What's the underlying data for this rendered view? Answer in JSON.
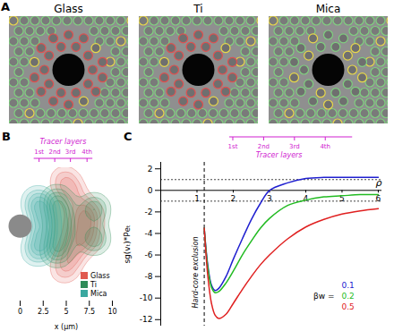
{
  "chart_data": [
    {
      "type": "image",
      "panel": "A",
      "titles": [
        "Glass",
        "Ti",
        "Mica"
      ]
    },
    {
      "type": "density",
      "panel": "B",
      "xlabel": "x (μm)",
      "xlim": [
        0,
        10
      ],
      "xticks": [
        0,
        2.5,
        5,
        7.5,
        10
      ],
      "ylim": [
        -9,
        7
      ],
      "tick_labels": "x",
      "legend": "bottom-right",
      "particle": {
        "x": 0,
        "y": 0
      },
      "layers": {
        "title": "Tracer layers",
        "labels": [
          "1st",
          "2nd",
          "3rd",
          "4th"
        ],
        "x": [
          2.1,
          3.8,
          5.5,
          7.3
        ]
      },
      "series": [
        {
          "name": "Glass",
          "color": "#e05a50",
          "x": [
            6.5,
            6.8,
            6.2,
            5.6,
            5.5,
            7.5,
            7.4,
            4.8,
            4.8
          ],
          "y": [
            0,
            2,
            -2,
            4,
            -3.5,
            1,
            -1.5,
            5.5,
            -5.2
          ]
        },
        {
          "name": "Ti",
          "color": "#2e8b57",
          "x": [
            4.5,
            4.5,
            4.0,
            4.0,
            8.0,
            8.0
          ],
          "y": [
            1,
            -1,
            3,
            -3,
            2,
            -1.5
          ]
        },
        {
          "name": "Mica",
          "color": "#3aa8a0",
          "x": [
            2.6,
            2.4,
            2.4,
            1.9,
            1.9
          ],
          "y": [
            0,
            1.8,
            -1.8,
            3,
            -3
          ]
        }
      ]
    },
    {
      "type": "line",
      "panel": "C",
      "ylabel": "sg(vₜ)*Peₜ",
      "xlabel": "ρ",
      "xlim": [
        0,
        6.1
      ],
      "xticks": [
        1,
        2,
        3,
        4,
        5,
        6
      ],
      "ylim": [
        -12.6,
        2.6
      ],
      "yticks": [
        -12,
        -10,
        -8,
        -6,
        -4,
        -2,
        0,
        2
      ],
      "x_axis_at": 0,
      "hlines": [
        1,
        -1
      ],
      "annotation": {
        "text": "Hard-core exclusion",
        "x": 1.2
      },
      "layers": {
        "title": "Tracer layers",
        "labels": [
          "1st",
          "2nd",
          "3rd",
          "4th"
        ],
        "x": [
          2.0,
          2.85,
          3.7,
          4.55
        ]
      },
      "legend": "bottom-right",
      "legend_title": "βw =",
      "x": [
        1.2,
        1.3,
        1.4,
        1.5,
        1.6,
        1.8,
        2.0,
        2.25,
        2.5,
        2.75,
        3.0,
        3.5,
        4.0,
        4.5,
        5.0,
        5.5,
        6.0
      ],
      "series": [
        {
          "name": "0.1",
          "color": "#2020d0",
          "values": [
            -3.5,
            -7.0,
            -8.8,
            -9.3,
            -9.1,
            -8.0,
            -6.4,
            -4.5,
            -2.7,
            -1.2,
            0.0,
            0.7,
            1.1,
            1.2,
            1.2,
            1.2,
            1.2
          ]
        },
        {
          "name": "0.2",
          "color": "#22bb22",
          "values": [
            -3.5,
            -7.2,
            -9.0,
            -9.5,
            -9.4,
            -8.6,
            -7.5,
            -6.0,
            -4.7,
            -3.5,
            -2.6,
            -1.4,
            -0.9,
            -0.6,
            -0.5,
            -0.4,
            -0.4
          ]
        },
        {
          "name": "0.5",
          "color": "#e02020",
          "values": [
            -3.5,
            -8.0,
            -10.5,
            -11.6,
            -11.9,
            -11.5,
            -10.5,
            -9.2,
            -8.0,
            -6.9,
            -6.0,
            -4.5,
            -3.4,
            -2.7,
            -2.2,
            -1.9,
            -1.7
          ]
        }
      ]
    }
  ]
}
